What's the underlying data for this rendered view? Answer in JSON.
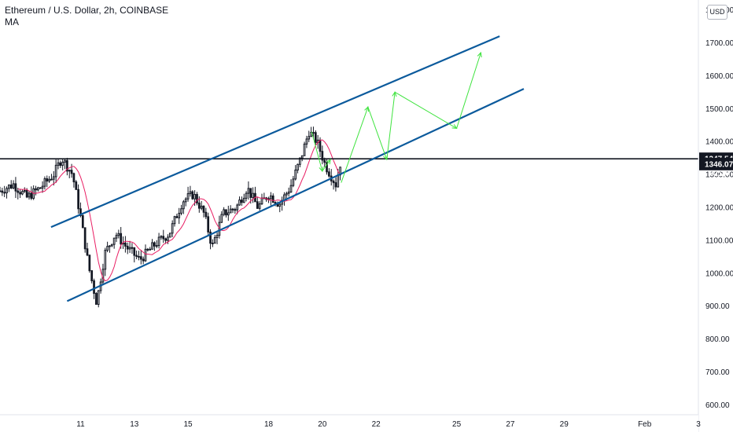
{
  "legend": {
    "title": "Ethereum / U.S. Dollar, 2h, COINBASE",
    "indicator": "MA"
  },
  "currency_button": "USD",
  "colors": {
    "up_candle": "#131722",
    "down_candle": "#131722",
    "ma_line": "#e91e63",
    "channel": "#0b5a9c",
    "projection": "#3ee33e",
    "horizontal": "#131722",
    "tag_bg": "#131722",
    "tag_blue": "#1e53e5"
  },
  "price_tags": {
    "level": "1347.54",
    "countdown": "02:20",
    "last": "1346.07"
  },
  "chart_data": {
    "type": "candlestick",
    "y_axis": {
      "ticks": [
        "1800.00",
        "1700.00",
        "1600.00",
        "1500.00",
        "1400.00",
        "1300.00",
        "1200.00",
        "1100.00",
        "1000.00",
        "900.00",
        "800.00",
        "700.00",
        "600.00"
      ],
      "values": [
        1800,
        1700,
        1600,
        1500,
        1400,
        1300,
        1200,
        1100,
        1000,
        900,
        800,
        700,
        600
      ],
      "range": [
        570,
        1830
      ]
    },
    "x_axis": {
      "labels": [
        "11",
        "13",
        "15",
        "18",
        "20",
        "22",
        "25",
        "27",
        "29",
        "Feb",
        "3"
      ],
      "positions_day": [
        11,
        13,
        15,
        18,
        20,
        22,
        25,
        27,
        29,
        32,
        34
      ]
    },
    "x_range_day": [
      8.0,
      34.0
    ],
    "key_prices": {
      "start": 1250,
      "peak_jan10": 1350,
      "low_jan11": 910,
      "mid_jan16": 1200,
      "low_jan16": 1080,
      "jan18": 1240,
      "high_jan19": 1430,
      "last": 1346
    },
    "horizontal_level": 1347.54,
    "channel": {
      "upper": [
        [
          9.9,
          1140
        ],
        [
          16.5,
          1350
        ],
        [
          26.6,
          1720
        ]
      ],
      "lower": [
        [
          10.5,
          915
        ],
        [
          20.7,
          1270
        ],
        [
          27.5,
          1560
        ]
      ]
    },
    "projection": [
      [
        20.7,
        1275
      ],
      [
        21.7,
        1505
      ],
      [
        22.4,
        1345
      ],
      [
        22.7,
        1550
      ],
      [
        25.0,
        1440
      ],
      [
        25.9,
        1670
      ]
    ],
    "projection_small": [
      [
        19.6,
        1430
      ],
      [
        20.0,
        1310
      ],
      [
        20.3,
        1345
      ]
    ]
  }
}
